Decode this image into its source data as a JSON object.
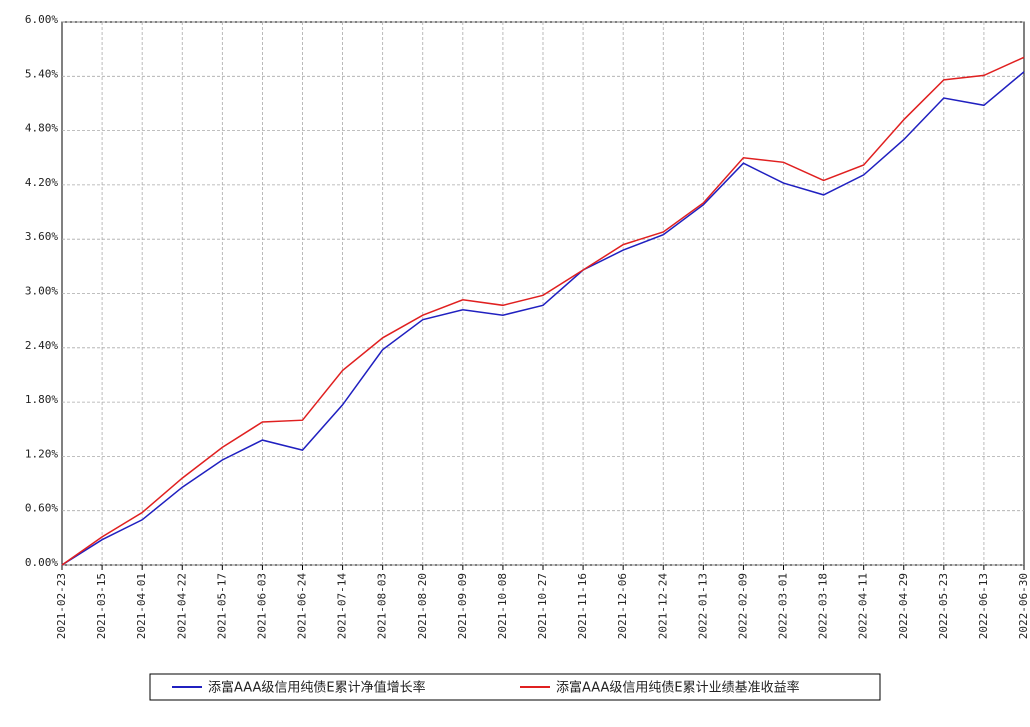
{
  "chart_data": {
    "type": "line",
    "categories": [
      "2021-02-23",
      "2021-03-15",
      "2021-04-01",
      "2021-04-22",
      "2021-05-17",
      "2021-06-03",
      "2021-06-24",
      "2021-07-14",
      "2021-08-03",
      "2021-08-20",
      "2021-09-09",
      "2021-10-08",
      "2021-10-27",
      "2021-11-16",
      "2021-12-06",
      "2021-12-24",
      "2022-01-13",
      "2022-02-09",
      "2022-03-01",
      "2022-03-18",
      "2022-04-11",
      "2022-04-29",
      "2022-05-23",
      "2022-06-13",
      "2022-06-30"
    ],
    "series": [
      {
        "name": "添富AAA级信用纯债E累计净值增长率",
        "color": "#2020c0",
        "values": [
          0,
          0.28,
          0.5,
          0.86,
          1.16,
          1.38,
          1.27,
          1.77,
          2.38,
          2.71,
          2.82,
          2.76,
          2.87,
          3.26,
          3.48,
          3.65,
          3.98,
          4.44,
          4.22,
          4.09,
          4.31,
          4.7,
          5.16,
          5.08,
          5.45
        ]
      },
      {
        "name": "添富AAA级信用纯债E累计业绩基准收益率",
        "color": "#e02020",
        "values": [
          0,
          0.31,
          0.58,
          0.96,
          1.3,
          1.58,
          1.6,
          2.15,
          2.51,
          2.76,
          2.93,
          2.87,
          2.98,
          3.26,
          3.54,
          3.68,
          4.0,
          4.5,
          4.45,
          4.25,
          4.42,
          4.92,
          5.36,
          5.41,
          5.61
        ]
      }
    ],
    "ylim": [
      0,
      6
    ],
    "yticks": [
      {
        "value": 0,
        "label": "0.00%"
      },
      {
        "value": 0.6,
        "label": "0.60%"
      },
      {
        "value": 1.2,
        "label": "1.20%"
      },
      {
        "value": 1.8,
        "label": "1.80%"
      },
      {
        "value": 2.4,
        "label": "2.40%"
      },
      {
        "value": 3,
        "label": "3.00%"
      },
      {
        "value": 3.6,
        "label": "3.60%"
      },
      {
        "value": 4.2,
        "label": "4.20%"
      },
      {
        "value": 4.8,
        "label": "4.80%"
      },
      {
        "value": 5.4,
        "label": "5.40%"
      },
      {
        "value": 6,
        "label": "6.00%"
      }
    ],
    "grid": true
  }
}
